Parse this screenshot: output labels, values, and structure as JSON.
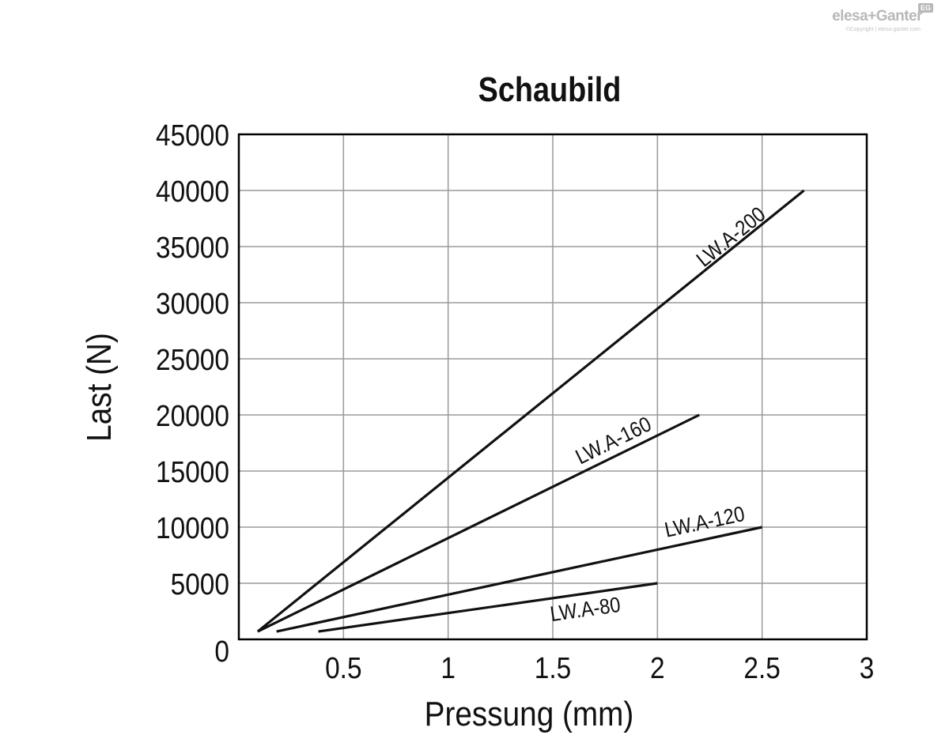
{
  "logo": {
    "brand": "elesa+Ganter",
    "badge": "EG",
    "copyright": "©Copyright | elesa-ganter.com"
  },
  "chart_data": {
    "type": "line",
    "title": "Schaubild",
    "xlabel": "Pressung (mm)",
    "ylabel": "Last (N)",
    "xlim": [
      0,
      3
    ],
    "ylim": [
      0,
      45000
    ],
    "x_ticks": [
      "0.5",
      "1",
      "1.5",
      "2",
      "2.5",
      "3"
    ],
    "y_ticks": [
      "0",
      "5000",
      "10000",
      "15000",
      "20000",
      "25000",
      "30000",
      "35000",
      "40000",
      "45000"
    ],
    "grid": true,
    "colors": {
      "line": "#111111",
      "grid": "#9a9a9a",
      "axis": "#000000"
    },
    "series": [
      {
        "name": "LW.A-200",
        "x": [
          0.09,
          2.7
        ],
        "y": [
          700,
          40000
        ]
      },
      {
        "name": "LW.A-160",
        "x": [
          0.09,
          2.2
        ],
        "y": [
          700,
          20000
        ]
      },
      {
        "name": "LW.A-120",
        "x": [
          0.18,
          2.5
        ],
        "y": [
          700,
          10000
        ]
      },
      {
        "name": "LW.A-80",
        "x": [
          0.38,
          2.0
        ],
        "y": [
          700,
          5000
        ]
      }
    ]
  }
}
